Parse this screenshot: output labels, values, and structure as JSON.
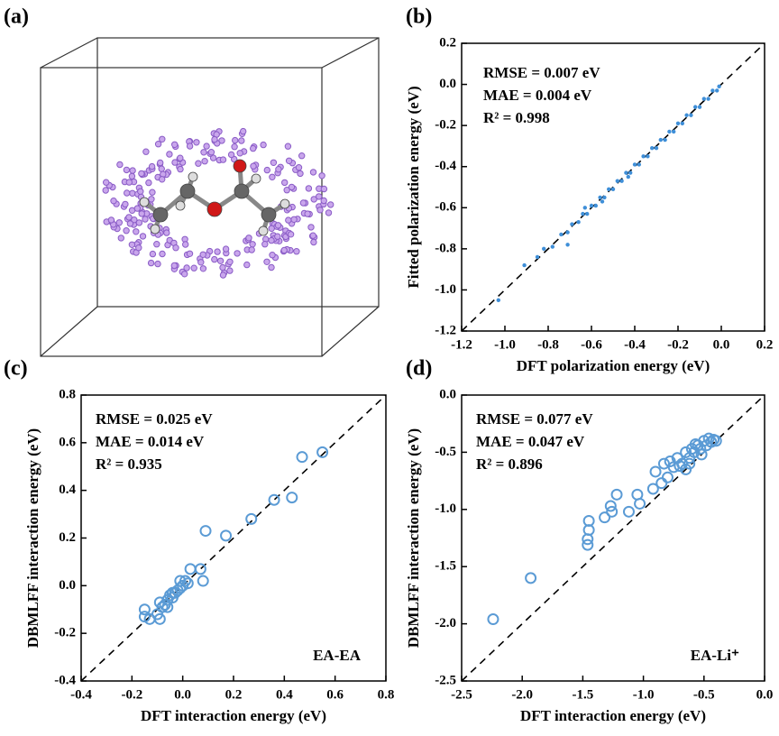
{
  "panel_a": {
    "label": "(a)"
  },
  "chart_data": [
    {
      "type": "scatter",
      "panel_label": "(b)",
      "xlabel": "DFT polarization energy (eV)",
      "ylabel": "Fitted polarization energy (eV)",
      "annotations": [
        "RMSE = 0.007 eV",
        "MAE = 0.004 eV",
        "R² = 0.998"
      ],
      "color": "#3f8fd8",
      "marker": "filled",
      "xlim": [
        -1.2,
        0.2
      ],
      "ylim": [
        -1.2,
        0.2
      ],
      "xticks": [
        {
          "value": -1.2,
          "label": "-1.2"
        },
        {
          "value": -1.0,
          "label": "-1.0"
        },
        {
          "value": -0.8,
          "label": "-0.8"
        },
        {
          "value": -0.6,
          "label": "-0.6"
        },
        {
          "value": -0.4,
          "label": "-0.4"
        },
        {
          "value": -0.2,
          "label": "-0.2"
        },
        {
          "value": 0,
          "label": "0.0"
        },
        0.2
      ],
      "yticks": [
        {
          "value": -1.2,
          "label": "-1.2"
        },
        {
          "value": -1.0,
          "label": "-1.0"
        },
        {
          "value": -0.8,
          "label": "-0.8"
        },
        {
          "value": -0.6,
          "label": "-0.6"
        },
        {
          "value": -0.4,
          "label": "-0.4"
        },
        {
          "value": -0.2,
          "label": "-0.2"
        },
        {
          "value": 0,
          "label": "0.0"
        },
        0.2
      ],
      "x": [
        -1.03,
        -0.91,
        -0.85,
        -0.82,
        -0.78,
        -0.74,
        -0.71,
        -0.69,
        -0.66,
        -0.64,
        -0.62,
        -0.6,
        -0.58,
        -0.56,
        -0.54,
        -0.52,
        -0.5,
        -0.48,
        -0.46,
        -0.44,
        -0.42,
        -0.4,
        -0.38,
        -0.36,
        -0.34,
        -0.32,
        -0.3,
        -0.28,
        -0.26,
        -0.24,
        -0.22,
        -0.2,
        -0.18,
        -0.16,
        -0.14,
        -0.12,
        -0.1,
        -0.08,
        -0.06,
        -0.04,
        -0.02,
        -0.01,
        -0.71,
        -0.63,
        -0.55,
        -0.43
      ],
      "values": [
        -1.05,
        -0.88,
        -0.84,
        -0.8,
        -0.79,
        -0.73,
        -0.72,
        -0.68,
        -0.67,
        -0.63,
        -0.63,
        -0.59,
        -0.59,
        -0.55,
        -0.55,
        -0.51,
        -0.51,
        -0.47,
        -0.47,
        -0.43,
        -0.43,
        -0.39,
        -0.39,
        -0.35,
        -0.35,
        -0.31,
        -0.31,
        -0.27,
        -0.27,
        -0.23,
        -0.23,
        -0.19,
        -0.19,
        -0.15,
        -0.15,
        -0.11,
        -0.11,
        -0.07,
        -0.07,
        -0.03,
        -0.03,
        -0.01,
        -0.78,
        -0.6,
        -0.57,
        -0.45
      ]
    },
    {
      "type": "scatter",
      "panel_label": "(c)",
      "xlabel": "DFT interaction energy (eV)",
      "ylabel": "DBMLFF interaction energy (eV)",
      "annotations": [
        "RMSE = 0.025 eV",
        "MAE = 0.014 eV",
        "R² = 0.935"
      ],
      "tag": "EA-EA",
      "color": "#5b9bd5",
      "marker": "open",
      "xlim": [
        -0.4,
        0.8
      ],
      "ylim": [
        -0.4,
        0.8
      ],
      "xticks": [
        {
          "value": -0.4,
          "label": "-0.4"
        },
        {
          "value": -0.2,
          "label": "-0.2"
        },
        {
          "value": 0,
          "label": "0.0"
        },
        0.2,
        0.4,
        0.6,
        0.8
      ],
      "yticks": [
        {
          "value": -0.4,
          "label": "-0.4"
        },
        {
          "value": -0.2,
          "label": "-0.2"
        },
        {
          "value": 0,
          "label": "0.0"
        },
        0.2,
        0.4,
        0.6,
        0.8
      ],
      "x": [
        0.55,
        0.47,
        0.43,
        0.36,
        0.27,
        0.17,
        0.09,
        0.07,
        0.08,
        0.03,
        0.02,
        0.0,
        -0.01,
        -0.02,
        -0.03,
        -0.04,
        -0.05,
        -0.06,
        -0.07,
        -0.08,
        -0.09,
        -0.1,
        -0.15,
        -0.15,
        -0.13,
        -0.09,
        -0.01,
        0.01,
        -0.04,
        -0.06
      ],
      "values": [
        0.56,
        0.54,
        0.37,
        0.36,
        0.28,
        0.21,
        0.23,
        0.07,
        0.02,
        0.07,
        0.01,
        0.0,
        0.02,
        -0.02,
        -0.03,
        -0.05,
        -0.04,
        -0.06,
        -0.08,
        -0.09,
        -0.07,
        -0.12,
        -0.1,
        -0.13,
        -0.14,
        -0.14,
        -0.01,
        0.02,
        -0.03,
        -0.09
      ]
    },
    {
      "type": "scatter",
      "panel_label": "(d)",
      "xlabel": "DFT interaction energy (eV)",
      "ylabel": "DBMLFF interaction energy (eV)",
      "annotations": [
        "RMSE = 0.077 eV",
        "MAE = 0.047 eV",
        "R² = 0.896"
      ],
      "tag": "EA-Li⁺",
      "color": "#5b9bd5",
      "marker": "open",
      "xlim": [
        -2.5,
        0
      ],
      "ylim": [
        -2.5,
        0
      ],
      "xticks": [
        {
          "value": -2.5,
          "label": "-2.5"
        },
        {
          "value": -2.0,
          "label": "-2.0"
        },
        {
          "value": -1.5,
          "label": "-1.5"
        },
        {
          "value": -1.0,
          "label": "-1.0"
        },
        {
          "value": -0.5,
          "label": "-0.5"
        },
        {
          "value": 0,
          "label": "0.0"
        }
      ],
      "yticks": [
        {
          "value": -2.5,
          "label": "-2.5"
        },
        {
          "value": -2.0,
          "label": "-2.0"
        },
        {
          "value": -1.5,
          "label": "-1.5"
        },
        {
          "value": -1.0,
          "label": "-1.0"
        },
        {
          "value": -0.5,
          "label": "-0.5"
        },
        {
          "value": 0,
          "label": "0.0"
        }
      ],
      "x": [
        -2.24,
        -1.93,
        -1.46,
        -1.46,
        -1.45,
        -1.45,
        -1.32,
        -1.26,
        -1.22,
        -1.27,
        -1.12,
        -1.05,
        -1.03,
        -0.92,
        -0.9,
        -0.85,
        -0.83,
        -0.8,
        -0.78,
        -0.75,
        -0.72,
        -0.7,
        -0.68,
        -0.65,
        -0.62,
        -0.6,
        -0.58,
        -0.55,
        -0.53,
        -0.5,
        -0.48,
        -0.46,
        -0.44,
        -0.42,
        -0.4,
        -0.52,
        -0.57,
        -0.62,
        -0.65
      ],
      "values": [
        -1.96,
        -1.6,
        -1.31,
        -1.26,
        -1.18,
        -1.1,
        -1.07,
        -1.02,
        -0.87,
        -0.97,
        -1.02,
        -0.87,
        -0.95,
        -0.82,
        -0.67,
        -0.77,
        -0.6,
        -0.72,
        -0.58,
        -0.63,
        -0.55,
        -0.62,
        -0.6,
        -0.5,
        -0.55,
        -0.47,
        -0.5,
        -0.44,
        -0.47,
        -0.4,
        -0.44,
        -0.38,
        -0.41,
        -0.39,
        -0.4,
        -0.52,
        -0.43,
        -0.6,
        -0.65
      ]
    }
  ]
}
